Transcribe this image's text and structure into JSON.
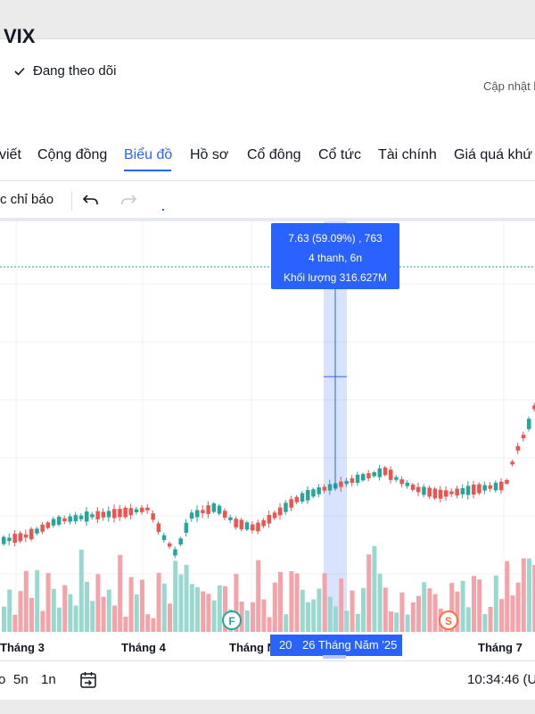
{
  "header": {
    "ticker": "VIX",
    "follow_label": "Đang theo dõi",
    "updated_label": "Cập nhật l"
  },
  "tabs": [
    {
      "label": "viết",
      "active": false
    },
    {
      "label": "Cộng đồng",
      "active": false
    },
    {
      "label": "Biểu đồ",
      "active": true
    },
    {
      "label": "Hồ sơ",
      "active": false
    },
    {
      "label": "Cổ đông",
      "active": false
    },
    {
      "label": "Cổ tức",
      "active": false
    },
    {
      "label": "Tài chính",
      "active": false
    },
    {
      "label": "Giá quá khứ",
      "active": false
    }
  ],
  "toolbar": {
    "indicators_label": "c chỉ báo",
    "undo_icon": "undo-icon",
    "redo_icon": "redo-icon"
  },
  "tooltip": {
    "line1": "7.63 (59.09%) , 763",
    "line2": "4 thanh, 6n",
    "line3": "Khối lượng 316.627M"
  },
  "xaxis": {
    "labels": [
      "Tháng 3",
      "Tháng 4",
      "Tháng N",
      "Tháng 7"
    ],
    "selection_start": "20",
    "selection_end": "26 Tháng Năm '25"
  },
  "markers": {
    "f": "F",
    "s": "S"
  },
  "bottom": {
    "range_5d": "5n",
    "range_1d": "1n",
    "range_partial": "o",
    "time": "10:34:46 (U"
  },
  "colors": {
    "up": "#26a69a",
    "down": "#ef5350",
    "accent": "#2962ff"
  }
}
